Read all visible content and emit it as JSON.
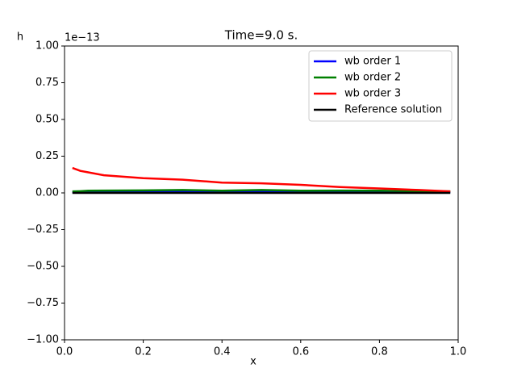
{
  "chart_data": {
    "type": "line",
    "title": "Time=9.0 s.",
    "x_label": "x",
    "y_label": "h",
    "offset_text": "1e−13",
    "x": [
      0.02,
      0.04,
      0.06,
      0.1,
      0.2,
      0.3,
      0.4,
      0.5,
      0.6,
      0.7,
      0.8,
      0.9,
      0.98
    ],
    "series": [
      {
        "name": "wb order 1",
        "color": "#0000ff",
        "values": [
          0.005,
          0.005,
          0.006,
          0.006,
          0.006,
          0.007,
          0.006,
          0.007,
          0.006,
          0.006,
          0.006,
          0.005,
          0.005
        ]
      },
      {
        "name": "wb order 2",
        "color": "#008000",
        "values": [
          0.01,
          0.012,
          0.015,
          0.016,
          0.017,
          0.02,
          0.015,
          0.02,
          0.015,
          0.016,
          0.015,
          0.012,
          0.01
        ]
      },
      {
        "name": "wb order 3",
        "color": "#ff0000",
        "values": [
          0.17,
          0.15,
          0.14,
          0.12,
          0.1,
          0.09,
          0.07,
          0.065,
          0.055,
          0.04,
          0.03,
          0.02,
          0.01
        ]
      },
      {
        "name": "Reference solution",
        "color": "#000000",
        "values": [
          0,
          0,
          0,
          0,
          0,
          0,
          0,
          0,
          0,
          0,
          0,
          0,
          0
        ]
      }
    ],
    "xlim": [
      0,
      1
    ],
    "xticks": [
      {
        "value": 0,
        "label": "0.0"
      },
      {
        "value": 0.2,
        "label": "0.2"
      },
      {
        "value": 0.4,
        "label": "0.4"
      },
      {
        "value": 0.6,
        "label": "0.6"
      },
      {
        "value": 0.8,
        "label": "0.8"
      },
      {
        "value": 1,
        "label": "1.0"
      }
    ],
    "ylim": [
      -1,
      1
    ],
    "yticks": [
      {
        "value": -1,
        "label": "−1.00"
      },
      {
        "value": -0.75,
        "label": "−0.75"
      },
      {
        "value": -0.5,
        "label": "−0.50"
      },
      {
        "value": -0.25,
        "label": "−0.25"
      },
      {
        "value": 0,
        "label": "0.00"
      },
      {
        "value": 0.25,
        "label": "0.25"
      },
      {
        "value": 0.5,
        "label": "0.50"
      },
      {
        "value": 0.75,
        "label": "0.75"
      },
      {
        "value": 1,
        "label": "1.00"
      }
    ],
    "grid": false,
    "legend": "upper-right"
  }
}
